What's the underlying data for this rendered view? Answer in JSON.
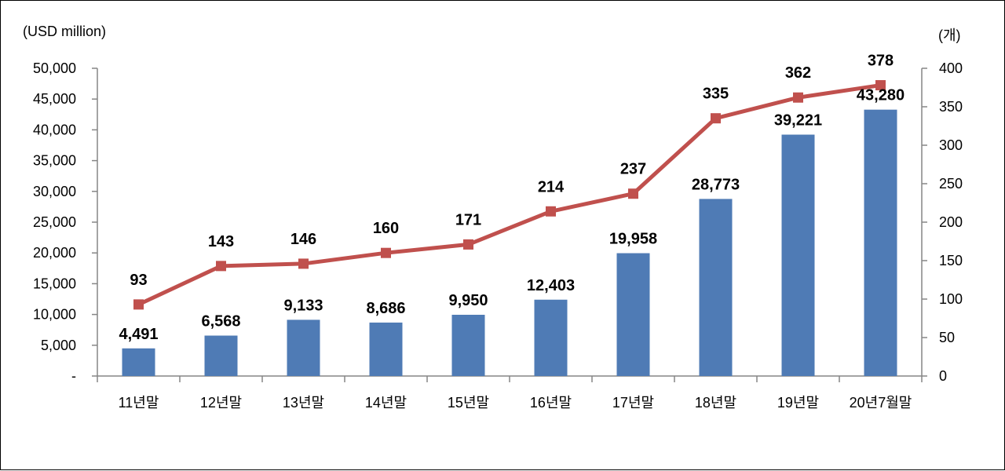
{
  "chart_data": {
    "type": "bar",
    "title": "",
    "left_unit": "(USD million)",
    "right_unit": "(개)",
    "categories": [
      "11년말",
      "12년말",
      "13년말",
      "14년말",
      "15년말",
      "16년말",
      "17년말",
      "18년말",
      "19년말",
      "20년7월말"
    ],
    "series": [
      {
        "type": "bar",
        "axis": "left",
        "color": "#4f7bb5",
        "values": [
          4491,
          6568,
          9133,
          8686,
          9950,
          12403,
          19958,
          28773,
          39221,
          43280
        ],
        "labels": [
          "4,491",
          "6,568",
          "9,133",
          "8,686",
          "9,950",
          "12,403",
          "19,958",
          "28,773",
          "39,221",
          "43,280"
        ]
      },
      {
        "type": "line",
        "axis": "right",
        "color": "#c0504d",
        "marker": "square",
        "values": [
          93,
          143,
          146,
          160,
          171,
          214,
          237,
          335,
          362,
          378
        ],
        "labels": [
          "93",
          "143",
          "146",
          "160",
          "171",
          "214",
          "237",
          "335",
          "362",
          "378"
        ]
      }
    ],
    "y_left": {
      "ylim": [
        0,
        50000
      ],
      "ticks": [
        0,
        5000,
        10000,
        15000,
        20000,
        25000,
        30000,
        35000,
        40000,
        45000,
        50000
      ],
      "tick_labels": [
        "-",
        "5,000",
        "10,000",
        "15,000",
        "20,000",
        "25,000",
        "30,000",
        "35,000",
        "40,000",
        "45,000",
        "50,000"
      ]
    },
    "y_right": {
      "ylim": [
        0,
        400
      ],
      "ticks": [
        0,
        50,
        100,
        150,
        200,
        250,
        300,
        350,
        400
      ],
      "tick_labels": [
        "0",
        "50",
        "100",
        "150",
        "200",
        "250",
        "300",
        "350",
        "400"
      ]
    },
    "grid": false,
    "legend": "none"
  }
}
